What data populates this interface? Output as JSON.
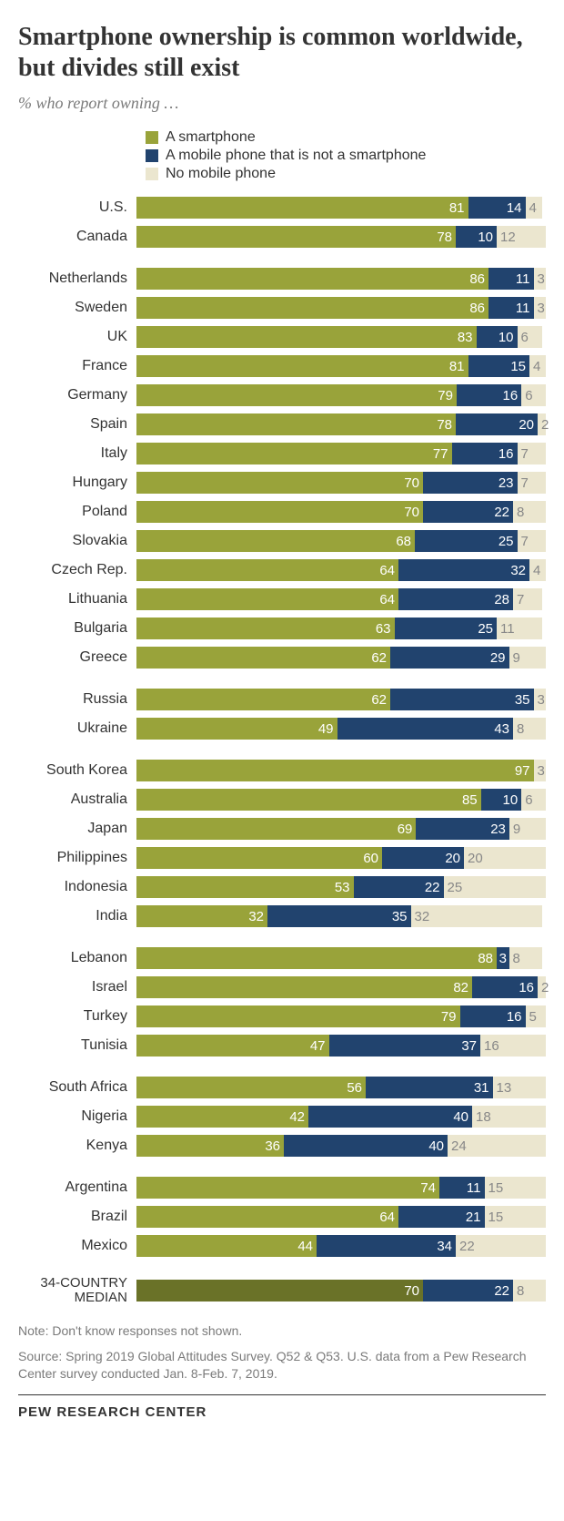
{
  "title": "Smartphone ownership is common worldwide, but divides still exist",
  "subtitle": "% who report owning …",
  "colors": {
    "smartphone": "#99a33a",
    "mobile": "#21436e",
    "none": "#ebe6cf",
    "median_smartphone": "#6a7228",
    "label_smartphone": "#ffffff",
    "label_mobile": "#ffffff",
    "label_none": "#888888",
    "label_none_overflow": "#21436e"
  },
  "legend": [
    {
      "swatch": "smartphone",
      "label": "A smartphone"
    },
    {
      "swatch": "mobile",
      "label": "A mobile phone that is not a smartphone"
    },
    {
      "swatch": "none",
      "label": "No mobile phone"
    }
  ],
  "groups": [
    {
      "rows": [
        {
          "label": "U.S.",
          "smartphone": 81,
          "mobile": 14,
          "none": 4
        },
        {
          "label": "Canada",
          "smartphone": 78,
          "mobile": 10,
          "none": 12
        }
      ]
    },
    {
      "rows": [
        {
          "label": "Netherlands",
          "smartphone": 86,
          "mobile": 11,
          "none": 3
        },
        {
          "label": "Sweden",
          "smartphone": 86,
          "mobile": 11,
          "none": 3
        },
        {
          "label": "UK",
          "smartphone": 83,
          "mobile": 10,
          "none": 6
        },
        {
          "label": "France",
          "smartphone": 81,
          "mobile": 15,
          "none": 4
        },
        {
          "label": "Germany",
          "smartphone": 79,
          "mobile": 16,
          "none": 6
        },
        {
          "label": "Spain",
          "smartphone": 78,
          "mobile": 20,
          "none": 2
        },
        {
          "label": "Italy",
          "smartphone": 77,
          "mobile": 16,
          "none": 7
        },
        {
          "label": "Hungary",
          "smartphone": 70,
          "mobile": 23,
          "none": 7
        },
        {
          "label": "Poland",
          "smartphone": 70,
          "mobile": 22,
          "none": 8
        },
        {
          "label": "Slovakia",
          "smartphone": 68,
          "mobile": 25,
          "none": 7
        },
        {
          "label": "Czech Rep.",
          "smartphone": 64,
          "mobile": 32,
          "none": 4
        },
        {
          "label": "Lithuania",
          "smartphone": 64,
          "mobile": 28,
          "none": 7
        },
        {
          "label": "Bulgaria",
          "smartphone": 63,
          "mobile": 25,
          "none": 11
        },
        {
          "label": "Greece",
          "smartphone": 62,
          "mobile": 29,
          "none": 9
        }
      ]
    },
    {
      "rows": [
        {
          "label": "Russia",
          "smartphone": 62,
          "mobile": 35,
          "none": 3
        },
        {
          "label": "Ukraine",
          "smartphone": 49,
          "mobile": 43,
          "none": 8
        }
      ]
    },
    {
      "rows": [
        {
          "label": "South Korea",
          "smartphone": 97,
          "mobile": null,
          "none": 3
        },
        {
          "label": "Australia",
          "smartphone": 85,
          "mobile": 10,
          "none": 6
        },
        {
          "label": "Japan",
          "smartphone": 69,
          "mobile": 23,
          "none": 9
        },
        {
          "label": "Philippines",
          "smartphone": 60,
          "mobile": 20,
          "none": 20
        },
        {
          "label": "Indonesia",
          "smartphone": 53,
          "mobile": 22,
          "none": 25
        },
        {
          "label": "India",
          "smartphone": 32,
          "mobile": 35,
          "none": 32
        }
      ]
    },
    {
      "rows": [
        {
          "label": "Lebanon",
          "smartphone": 88,
          "mobile": 3,
          "none": 8
        },
        {
          "label": "Israel",
          "smartphone": 82,
          "mobile": 16,
          "none": 2
        },
        {
          "label": "Turkey",
          "smartphone": 79,
          "mobile": 16,
          "none": 5
        },
        {
          "label": "Tunisia",
          "smartphone": 47,
          "mobile": 37,
          "none": 16
        }
      ]
    },
    {
      "rows": [
        {
          "label": "South Africa",
          "smartphone": 56,
          "mobile": 31,
          "none": 13
        },
        {
          "label": "Nigeria",
          "smartphone": 42,
          "mobile": 40,
          "none": 18
        },
        {
          "label": "Kenya",
          "smartphone": 36,
          "mobile": 40,
          "none": 24
        }
      ]
    },
    {
      "rows": [
        {
          "label": "Argentina",
          "smartphone": 74,
          "mobile": 11,
          "none": 15
        },
        {
          "label": "Brazil",
          "smartphone": 64,
          "mobile": 21,
          "none": 15
        },
        {
          "label": "Mexico",
          "smartphone": 44,
          "mobile": 34,
          "none": 22
        }
      ]
    }
  ],
  "median": {
    "label_line1": "34-COUNTRY",
    "label_line2": "MEDIAN",
    "smartphone": 70,
    "mobile": 22,
    "none": 8
  },
  "note1": "Note: Don't know responses not shown.",
  "note2": "Source: Spring 2019 Global Attitudes Survey. Q52 & Q53. U.S. data from a Pew Research Center survey conducted Jan. 8-Feb. 7, 2019.",
  "footer": "PEW RESEARCH CENTER"
}
